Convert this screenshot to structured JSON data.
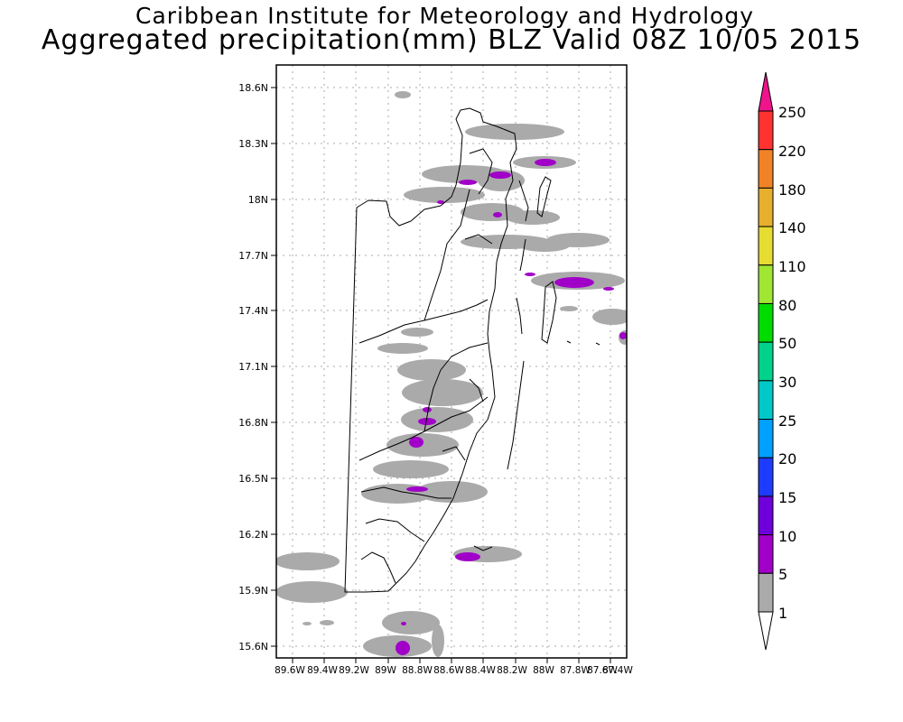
{
  "header": {
    "institute": "Caribbean Institute for Meteorology and Hydrology",
    "product": "Aggregated precipitation(mm) BLZ Valid 08Z 10/05 2015"
  },
  "map": {
    "region": "BLZ",
    "lat_ticks": [
      "18.6N",
      "18.3N",
      "18N",
      "17.7N",
      "17.4N",
      "17.1N",
      "16.8N",
      "16.5N",
      "16.2N",
      "15.9N",
      "15.6N"
    ],
    "lon_ticks": [
      "89.6W",
      "89.4W",
      "89.2W",
      "89W",
      "88.8W",
      "88.6W",
      "88.4W",
      "88.2W",
      "88W",
      "87.8W",
      "87.6W",
      "87.4W"
    ],
    "gridlines": "dotted",
    "precip_light_color": "#aaaaaa",
    "precip_moderate_color": "#a000c8"
  },
  "colorbar": {
    "levels": [
      "250",
      "220",
      "180",
      "140",
      "110",
      "80",
      "50",
      "30",
      "25",
      "20",
      "15",
      "10",
      "5",
      "1"
    ],
    "colors": [
      "#f0148c",
      "#ff3232",
      "#f08228",
      "#e6af2d",
      "#e6dc32",
      "#a0e632",
      "#00dc00",
      "#00d28c",
      "#00c8c8",
      "#00a0ff",
      "#1e3cff",
      "#6e00dc",
      "#a000c8",
      "#aaaaaa"
    ]
  }
}
